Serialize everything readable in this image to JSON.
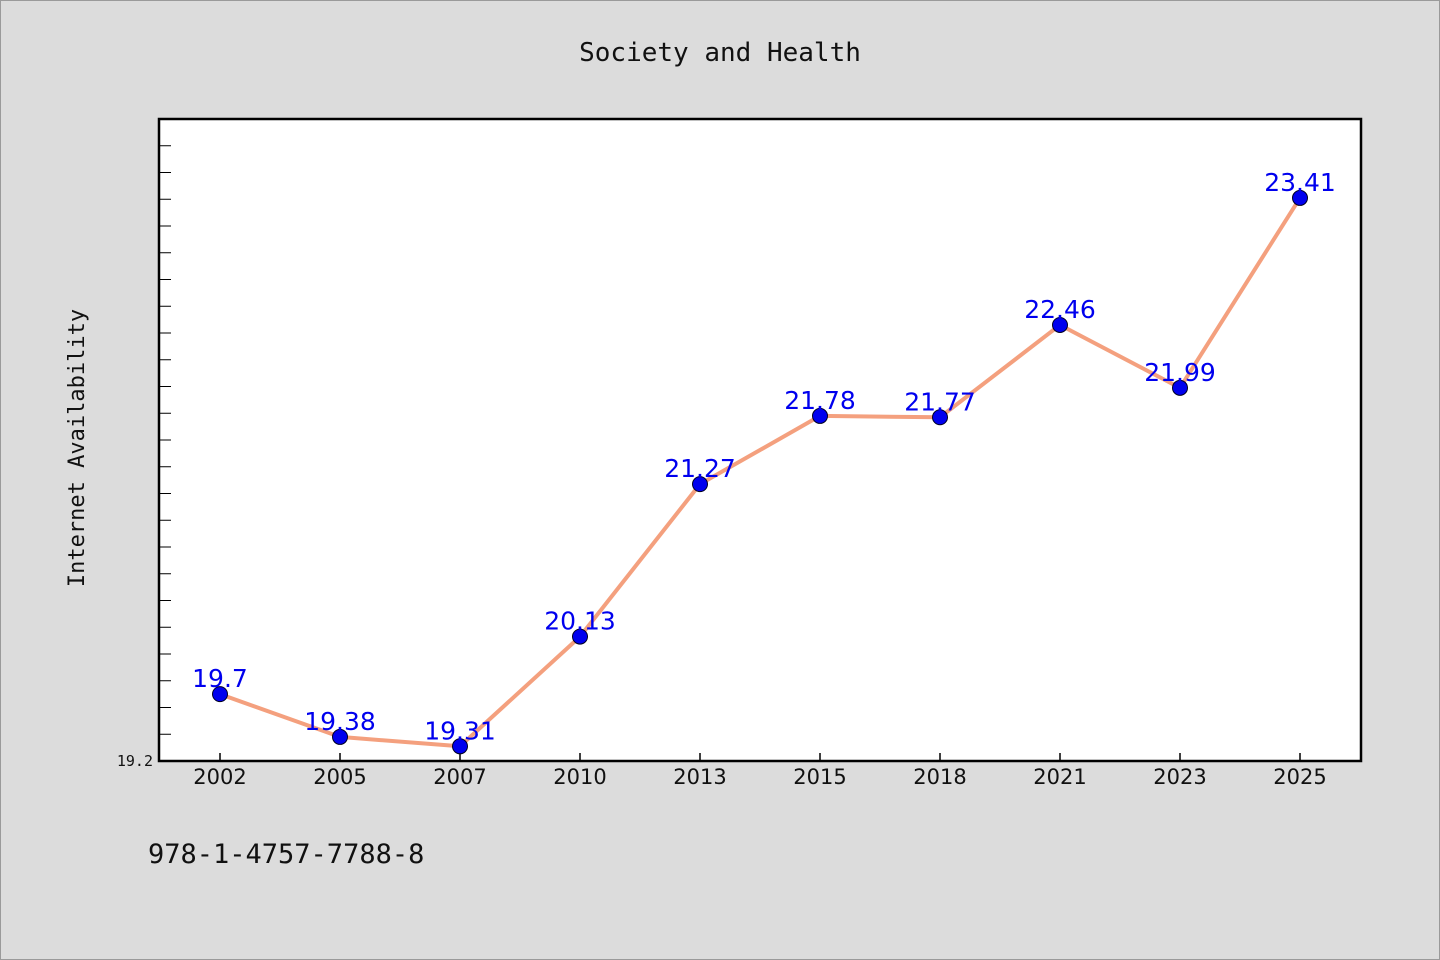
{
  "chart_data": {
    "type": "line",
    "title": "Society and Health",
    "xlabel": "",
    "ylabel": "Internet Availability",
    "categories": [
      "2002",
      "2005",
      "2007",
      "2010",
      "2013",
      "2015",
      "2018",
      "2021",
      "2023",
      "2025"
    ],
    "series": [
      {
        "values": [
          19.7,
          19.38,
          19.31,
          20.13,
          21.27,
          21.78,
          21.77,
          22.46,
          21.99,
          23.41
        ],
        "labels": [
          "19.7",
          "19.38",
          "19.31",
          "20.13",
          "21.27",
          "21.78",
          "21.77",
          "22.46",
          "21.99",
          "23.41"
        ]
      }
    ],
    "ylim": [
      19.2,
      24.0
    ],
    "yticks": [
      "19.2"
    ],
    "grid": false,
    "legend": "none",
    "line_color": "#f4a07e",
    "marker_color": "#0000ee",
    "label_color": "#0000ee"
  },
  "footer": {
    "isbn": "978-1-4757-7788-8"
  }
}
